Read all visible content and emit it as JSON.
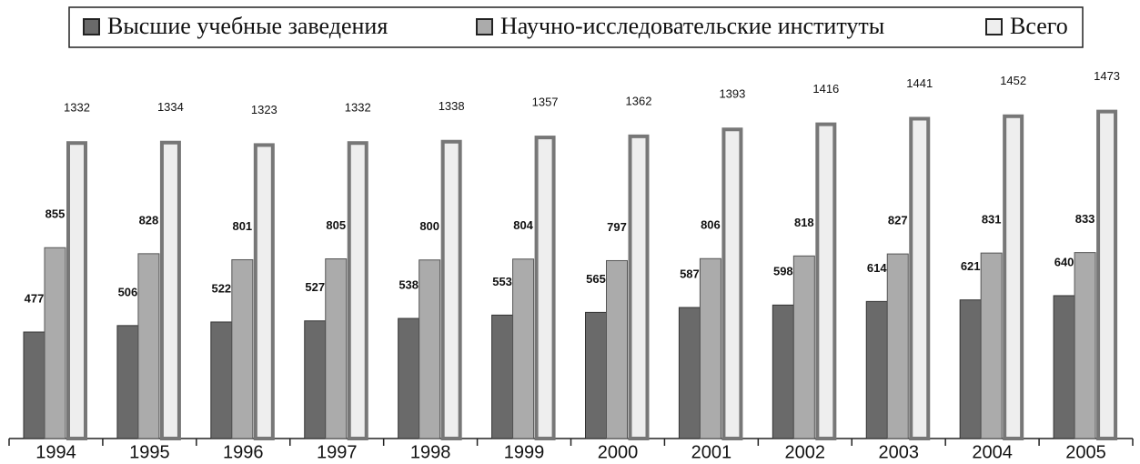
{
  "chart_data": {
    "type": "bar",
    "categories": [
      "1994",
      "1995",
      "1996",
      "1997",
      "1998",
      "1999",
      "2000",
      "2001",
      "2002",
      "2003",
      "2004",
      "2005"
    ],
    "series": [
      {
        "name": "Высшие учебные заведения",
        "color": "#6a6a6a",
        "values": [
          477,
          506,
          522,
          527,
          538,
          553,
          565,
          587,
          598,
          614,
          621,
          640
        ]
      },
      {
        "name": "Научно-исследовательские институты",
        "color": "#ababab",
        "values": [
          855,
          828,
          801,
          805,
          800,
          804,
          797,
          806,
          818,
          827,
          831,
          833
        ]
      },
      {
        "name": "Всего",
        "color": "#eeeeee",
        "values": [
          1332,
          1334,
          1323,
          1332,
          1338,
          1357,
          1362,
          1393,
          1416,
          1441,
          1452,
          1473
        ]
      }
    ],
    "ylim": [
      0,
      1500
    ]
  }
}
